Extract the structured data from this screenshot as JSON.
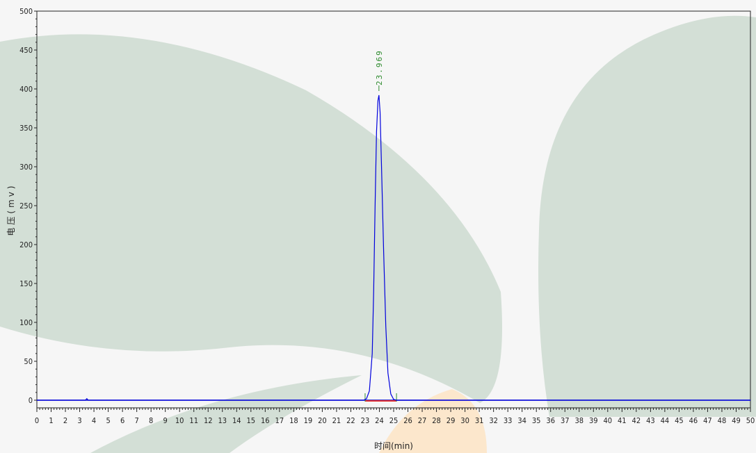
{
  "chart_data": {
    "type": "line",
    "xlabel": "时间(min)",
    "ylabel": "电压(mv)",
    "xlim": [
      0,
      50
    ],
    "ylim": [
      0,
      500
    ],
    "x_ticks": [
      0,
      1,
      2,
      3,
      4,
      5,
      6,
      7,
      8,
      9,
      10,
      11,
      12,
      13,
      14,
      15,
      16,
      17,
      18,
      19,
      20,
      21,
      22,
      23,
      24,
      25,
      26,
      27,
      28,
      29,
      30,
      31,
      32,
      33,
      34,
      35,
      36,
      37,
      38,
      39,
      40,
      41,
      42,
      43,
      44,
      45,
      46,
      47,
      48,
      49,
      50
    ],
    "y_ticks": [
      0,
      50,
      100,
      150,
      200,
      250,
      300,
      350,
      400,
      450,
      500
    ],
    "series": [
      {
        "color": "#0000dd",
        "x": [
          0,
          3.4,
          3.5,
          3.6,
          22.9,
          23.1,
          23.3,
          23.5,
          23.6,
          23.7,
          23.8,
          23.9,
          23.969,
          24.05,
          24.15,
          24.3,
          24.45,
          24.6,
          24.8,
          25.0,
          25.2,
          26,
          50
        ],
        "y": [
          0,
          0,
          2,
          0,
          0,
          2,
          12,
          60,
          140,
          250,
          345,
          385,
          392,
          370,
          300,
          190,
          95,
          35,
          8,
          1,
          0,
          0,
          0
        ]
      }
    ],
    "baseline": {
      "color": "#e03030",
      "x_start": 23.0,
      "x_end": 25.2
    },
    "peak_markers": [
      {
        "x": 23.0,
        "color": "#2e8b2e"
      },
      {
        "x": 25.2,
        "color": "#2e8b2e"
      }
    ],
    "peaks": [
      {
        "x": 23.969,
        "y": 392,
        "label": "23.969",
        "color": "#2e8b2e"
      }
    ],
    "grid": false,
    "axis_color": "#0000cc"
  },
  "watermark": {
    "color": "#cfddd3",
    "accent": "#fde6c8"
  }
}
